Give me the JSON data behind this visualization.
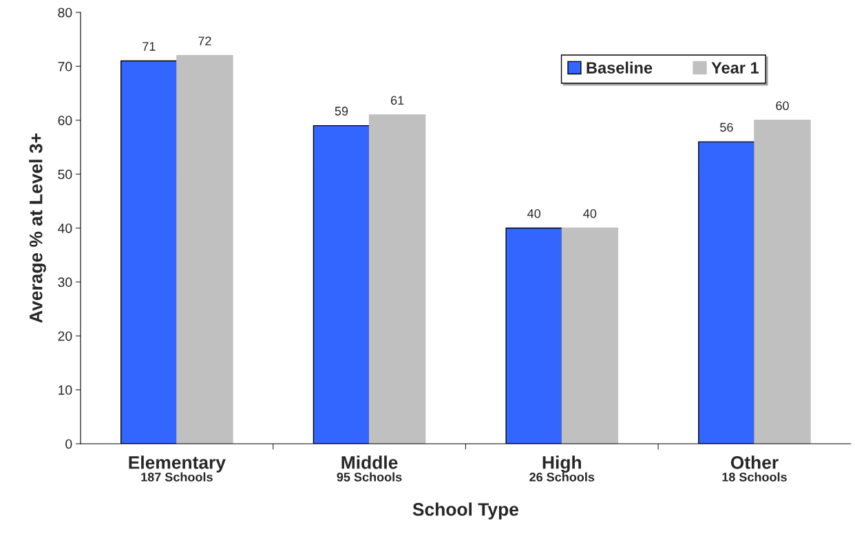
{
  "chart_data": {
    "type": "bar",
    "xlabel": "School Type",
    "ylabel": "Average % at Level 3+",
    "categories": [
      "Elementary\n187 Schools",
      "Middle\n95 Schools",
      "High\n26 Schools",
      "Other\n18 Schools"
    ],
    "series": [
      {
        "name": "Baseline",
        "color": "#3366ff",
        "values": [
          71,
          59,
          40,
          56
        ]
      },
      {
        "name": "Year 1",
        "color": "#c0c0c0",
        "values": [
          72,
          61,
          40,
          60
        ]
      }
    ],
    "ylim": [
      0,
      80
    ],
    "yticks": [
      0,
      10,
      20,
      30,
      40,
      50,
      60,
      70,
      80
    ],
    "data_labels": true,
    "legend": "top right",
    "grid": false
  }
}
